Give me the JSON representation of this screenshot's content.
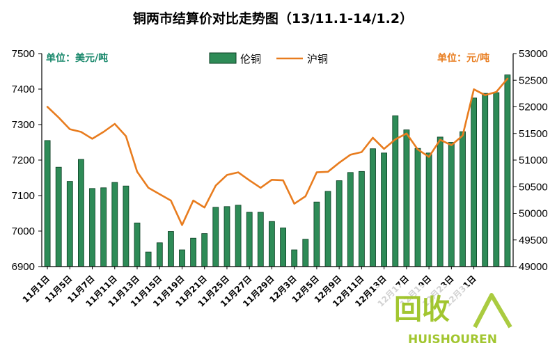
{
  "chart_data": {
    "type": "bar",
    "title": "铜两市结算价对比走势图（13/11.1-14/1.2）",
    "left_unit": "单位：美元/吨",
    "right_unit": "单位：元/吨",
    "legend": [
      "伦铜",
      "沪铜"
    ],
    "legend_position": "top-center",
    "grid": false,
    "colors": {
      "bars": "#2e8b57",
      "bar_edge": "#0a3d22",
      "line": "#e87c1e"
    },
    "y_left": {
      "min": 6900,
      "max": 7500,
      "ticks": [
        6900,
        7000,
        7100,
        7200,
        7300,
        7400,
        7500
      ]
    },
    "y_right": {
      "min": 49000,
      "max": 53000,
      "ticks": [
        49000,
        49500,
        50000,
        50500,
        51000,
        51500,
        52000,
        52500,
        53000
      ]
    },
    "x_tick_labels": [
      "11月1日",
      "11月5日",
      "11月7日",
      "11月11日",
      "11月13日",
      "11月15日",
      "11月19日",
      "11月21日",
      "11月25日",
      "11月27日",
      "11月29日",
      "12月3日",
      "12月5日",
      "12月9日",
      "12月11日",
      "12月13日",
      "12月17日",
      "12月19日",
      "12月23日",
      "12月31日"
    ],
    "series": [
      {
        "name": "伦铜",
        "kind": "bar",
        "axis": "left",
        "values": [
          7255,
          7180,
          7140,
          7202,
          7120,
          7122,
          7137,
          7127,
          7023,
          6941,
          6967,
          6999,
          6947,
          6980,
          6993,
          7067,
          7069,
          7073,
          7053,
          7053,
          7027,
          7009,
          6947,
          6977,
          7082,
          7112,
          7142,
          7165,
          7168,
          7232,
          7220,
          7325,
          7285,
          7233,
          7220,
          7265,
          7250,
          7280,
          7375,
          7388,
          7390,
          7440
        ]
      },
      {
        "name": "沪铜",
        "kind": "line",
        "axis": "right",
        "values": [
          52000,
          51800,
          51580,
          51530,
          51400,
          51530,
          51680,
          51450,
          50780,
          50480,
          50360,
          50240,
          49780,
          50240,
          50110,
          50520,
          50720,
          50770,
          50620,
          50480,
          50630,
          50620,
          50180,
          50320,
          50770,
          50780,
          50950,
          51100,
          51150,
          51420,
          51210,
          51390,
          51500,
          51200,
          51060,
          51380,
          51280,
          51460,
          52330,
          52220,
          52280,
          52530
        ]
      }
    ]
  },
  "watermark": {
    "main": "回收",
    "sub": "HUISHOUREN"
  }
}
